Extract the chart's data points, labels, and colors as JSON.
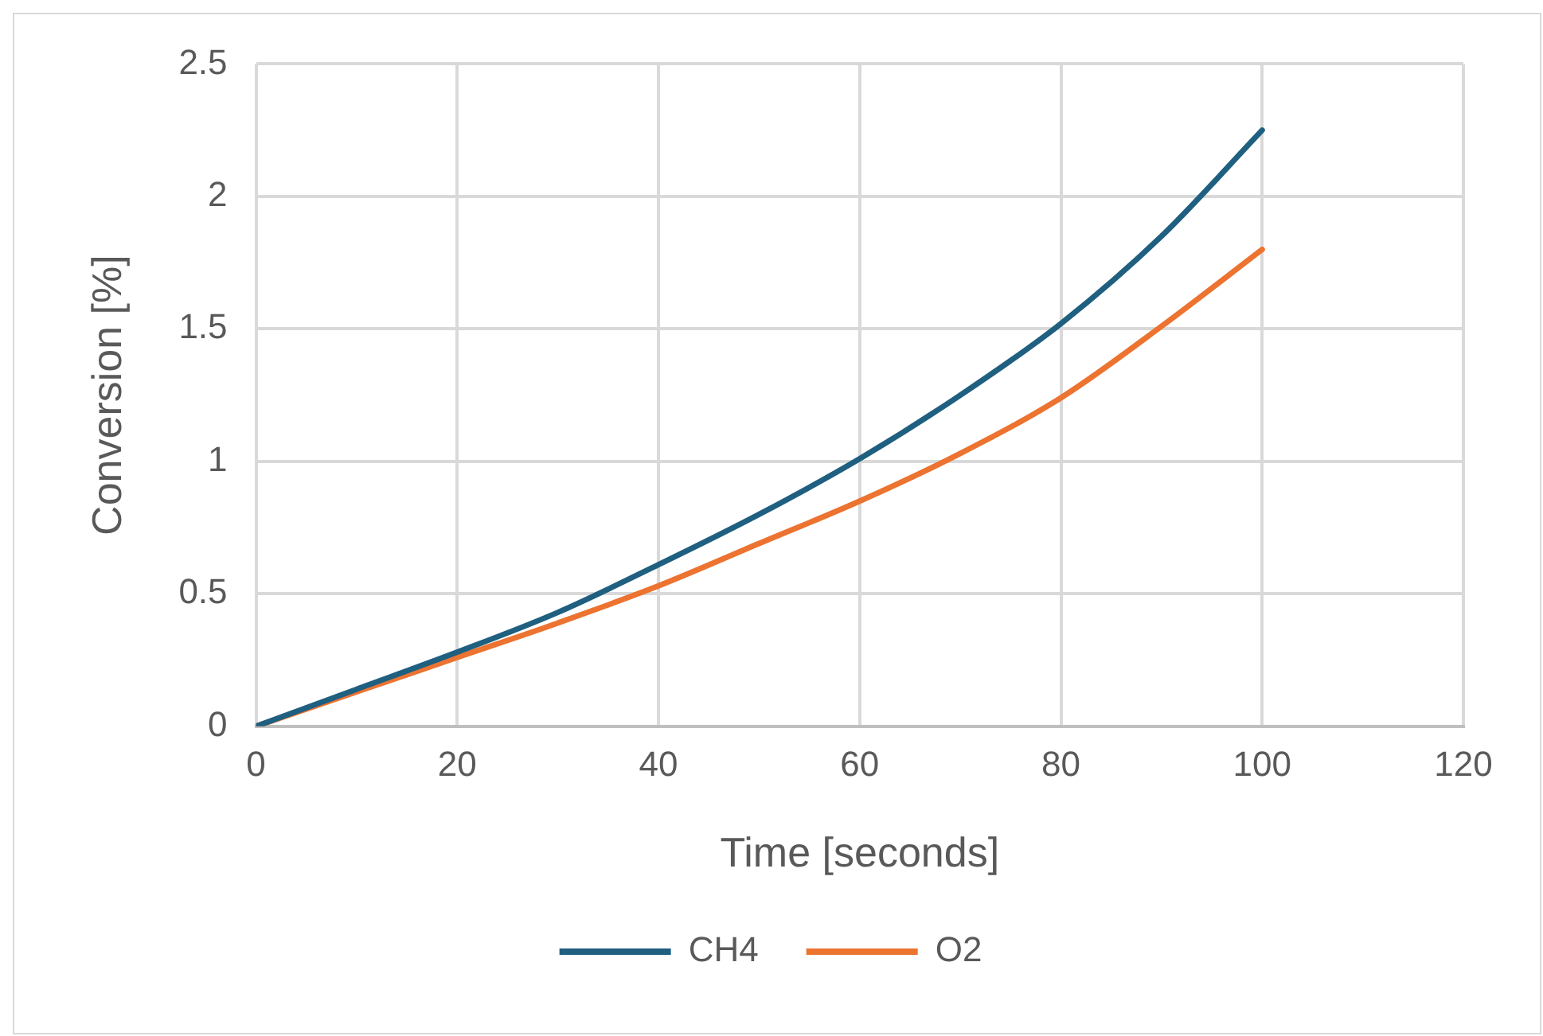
{
  "chart_data": {
    "type": "line",
    "xlabel": "Time [seconds]",
    "ylabel": "Conversion [%]",
    "x": [
      0,
      10,
      20,
      30,
      40,
      50,
      60,
      70,
      80,
      90,
      100
    ],
    "series": [
      {
        "name": "CH4",
        "color": "#1f5f80",
        "values": [
          0,
          0.14,
          0.28,
          0.43,
          0.61,
          0.8,
          1.01,
          1.25,
          1.52,
          1.85,
          2.25
        ]
      },
      {
        "name": "O2",
        "color": "#ec7330",
        "values": [
          0,
          0.13,
          0.26,
          0.39,
          0.53,
          0.69,
          0.85,
          1.03,
          1.24,
          1.51,
          1.8
        ]
      }
    ],
    "xlim": [
      0,
      120
    ],
    "xticks": [
      0,
      20,
      40,
      60,
      80,
      100,
      120
    ],
    "ylim": [
      0,
      2.5
    ],
    "yticks": [
      0,
      0.5,
      1,
      1.5,
      2,
      2.5
    ],
    "grid": true,
    "legend": "bottom",
    "marker": "none",
    "line_style": "solid"
  }
}
